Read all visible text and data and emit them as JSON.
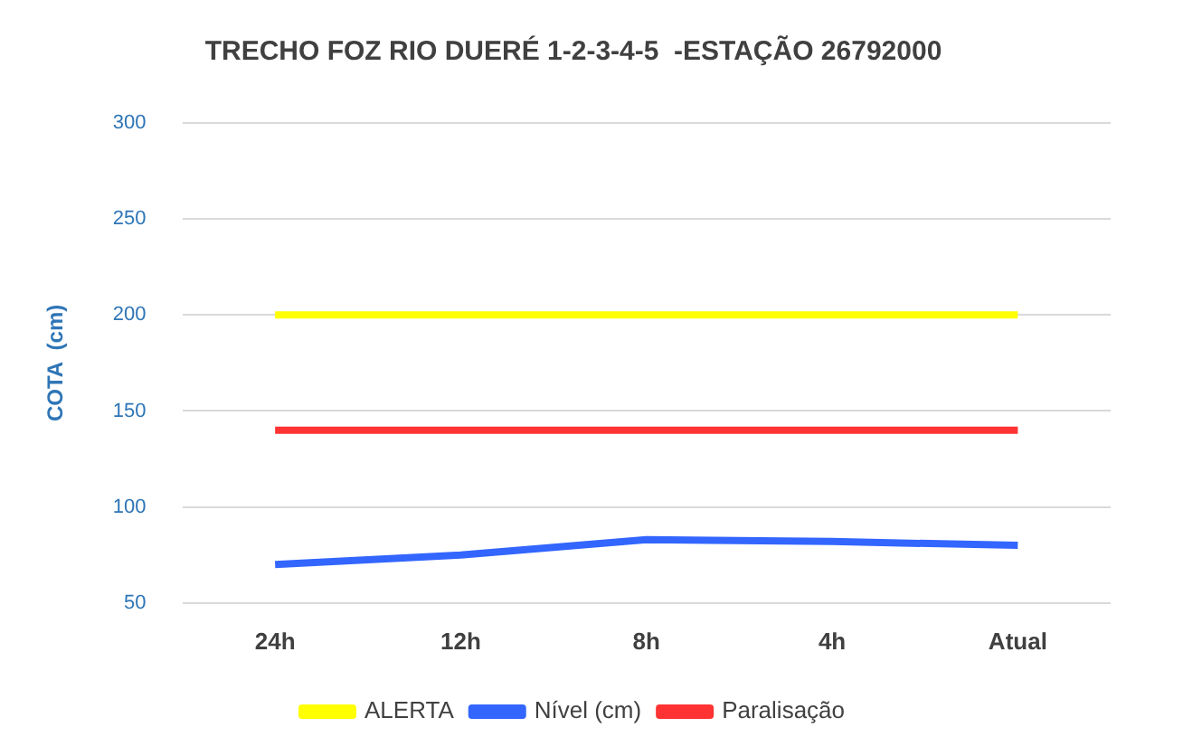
{
  "chart_data": {
    "type": "line",
    "title": "TRECHO FOZ RIO DUERÉ 1-2-3-4-5  -ESTAÇÃO 26792000",
    "ylabel": "COTA  (cm)",
    "categories": [
      "24h",
      "12h",
      "8h",
      "4h",
      "Atual"
    ],
    "series": [
      {
        "name": "ALERTA",
        "color": "#ffff00",
        "values": [
          200,
          200,
          200,
          200,
          200
        ]
      },
      {
        "name": "Nível (cm)",
        "color": "#3366ff",
        "values": [
          70,
          75,
          83,
          82,
          80
        ]
      },
      {
        "name": "Paralisação",
        "color": "#ff3333",
        "values": [
          140,
          140,
          140,
          140,
          140
        ]
      }
    ],
    "ylim": [
      50,
      300
    ],
    "yticks": [
      50,
      100,
      150,
      200,
      250,
      300
    ],
    "grid": "y",
    "legend": "bottom",
    "marker": "none",
    "line_style": "solid"
  }
}
